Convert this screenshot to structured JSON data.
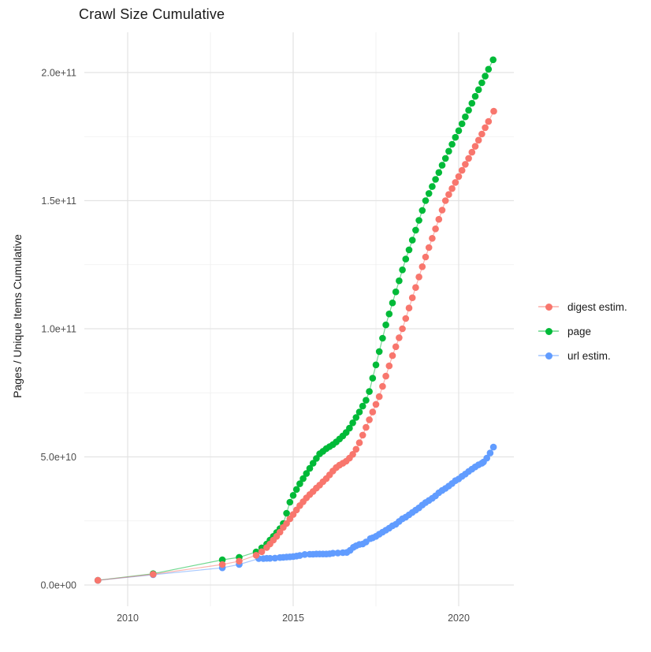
{
  "title": "Crawl Size Cumulative",
  "y_axis": {
    "label": "Pages / Unique Items Cumulative",
    "tick_labels": [
      "0.0e+00",
      "5.0e+10",
      "1.0e+11",
      "1.5e+11",
      "2.0e+11"
    ],
    "tick_values_e9": [
      0,
      50,
      100,
      150,
      200
    ],
    "minor_values_e9": [
      25,
      75,
      125,
      175
    ]
  },
  "x_axis": {
    "tick_labels": [
      "2010",
      "2015",
      "2020"
    ],
    "tick_values": [
      2010,
      2015,
      2020
    ],
    "minor_values": [
      2012.5,
      2017.5
    ]
  },
  "legend": {
    "position": "right",
    "items": [
      {
        "label": "digest estim.",
        "color": "#F8766D"
      },
      {
        "label": "page",
        "color": "#00BA38"
      },
      {
        "label": "url estim.",
        "color": "#619CFF"
      }
    ]
  },
  "chart_data": {
    "type": "scatter",
    "title": "Crawl Size Cumulative",
    "xlabel": "",
    "ylabel": "Pages / Unique Items Cumulative",
    "value_unit": "1e9 (billions of pages / unique items)",
    "xlim": [
      2008.5,
      2021.7
    ],
    "ylim_e9": [
      0,
      215
    ],
    "grid": true,
    "legend_position": "right",
    "z_order": [
      "page",
      "url estim.",
      "digest estim."
    ],
    "series": [
      {
        "name": "digest estim.",
        "color": "#F8766D",
        "points": [
          [
            2009.1,
            1.8
          ],
          [
            2010.77,
            4.2
          ],
          [
            2012.86,
            8.0
          ],
          [
            2013.37,
            9.3
          ],
          [
            2013.88,
            11.6
          ],
          [
            2014.05,
            13.0
          ],
          [
            2014.2,
            14.6
          ],
          [
            2014.3,
            16.0
          ],
          [
            2014.4,
            17.5
          ],
          [
            2014.5,
            19.0
          ],
          [
            2014.6,
            20.6
          ],
          [
            2014.7,
            22.5
          ],
          [
            2014.8,
            24.0
          ],
          [
            2014.9,
            25.8
          ],
          [
            2015.0,
            27.5
          ],
          [
            2015.1,
            29.3
          ],
          [
            2015.2,
            31.0
          ],
          [
            2015.3,
            32.5
          ],
          [
            2015.4,
            34.0
          ],
          [
            2015.5,
            35.3
          ],
          [
            2015.6,
            36.5
          ],
          [
            2015.7,
            37.8
          ],
          [
            2015.8,
            39.0
          ],
          [
            2015.9,
            40.3
          ],
          [
            2016.0,
            41.5
          ],
          [
            2016.1,
            43.0
          ],
          [
            2016.2,
            44.5
          ],
          [
            2016.3,
            45.8
          ],
          [
            2016.4,
            46.8
          ],
          [
            2016.5,
            47.5
          ],
          [
            2016.6,
            48.3
          ],
          [
            2016.7,
            49.5
          ],
          [
            2016.8,
            51.0
          ],
          [
            2016.9,
            53.0
          ],
          [
            2017.0,
            55.5
          ],
          [
            2017.1,
            58.5
          ],
          [
            2017.2,
            61.5
          ],
          [
            2017.3,
            64.5
          ],
          [
            2017.4,
            67.5
          ],
          [
            2017.5,
            70.5
          ],
          [
            2017.6,
            73.5
          ],
          [
            2017.7,
            77.5
          ],
          [
            2017.8,
            81.5
          ],
          [
            2017.9,
            85.5
          ],
          [
            2018.0,
            89.5
          ],
          [
            2018.1,
            93.0
          ],
          [
            2018.2,
            96.5
          ],
          [
            2018.3,
            100.0
          ],
          [
            2018.4,
            104.0
          ],
          [
            2018.5,
            108.1
          ],
          [
            2018.6,
            112.1
          ],
          [
            2018.7,
            116.1
          ],
          [
            2018.8,
            120.2
          ],
          [
            2018.9,
            124.2
          ],
          [
            2019.0,
            128.0
          ],
          [
            2019.1,
            131.7
          ],
          [
            2019.2,
            135.3
          ],
          [
            2019.3,
            139.0
          ],
          [
            2019.4,
            142.7
          ],
          [
            2019.5,
            146.3
          ],
          [
            2019.6,
            150.0
          ],
          [
            2019.7,
            152.4
          ],
          [
            2019.8,
            154.7
          ],
          [
            2019.9,
            157.1
          ],
          [
            2020.0,
            159.4
          ],
          [
            2020.1,
            161.8
          ],
          [
            2020.2,
            164.2
          ],
          [
            2020.3,
            166.5
          ],
          [
            2020.4,
            168.9
          ],
          [
            2020.5,
            171.2
          ],
          [
            2020.6,
            173.6
          ],
          [
            2020.7,
            176.0
          ],
          [
            2020.8,
            178.5
          ],
          [
            2020.9,
            180.9
          ],
          [
            2021.06,
            184.9
          ]
        ]
      },
      {
        "name": "page",
        "color": "#00BA38",
        "points": [
          [
            2009.1,
            1.8
          ],
          [
            2010.77,
            4.4
          ],
          [
            2012.86,
            9.8
          ],
          [
            2013.37,
            10.8
          ],
          [
            2013.88,
            12.9
          ],
          [
            2014.05,
            14.5
          ],
          [
            2014.2,
            16.0
          ],
          [
            2014.3,
            17.5
          ],
          [
            2014.4,
            19.0
          ],
          [
            2014.5,
            20.5
          ],
          [
            2014.6,
            22.0
          ],
          [
            2014.7,
            24.0
          ],
          [
            2014.8,
            28.0
          ],
          [
            2014.9,
            32.3
          ],
          [
            2015.0,
            35.0
          ],
          [
            2015.1,
            37.3
          ],
          [
            2015.2,
            39.5
          ],
          [
            2015.3,
            41.5
          ],
          [
            2015.4,
            43.5
          ],
          [
            2015.5,
            45.5
          ],
          [
            2015.6,
            47.5
          ],
          [
            2015.7,
            49.4
          ],
          [
            2015.8,
            51.2
          ],
          [
            2015.9,
            52.2
          ],
          [
            2016.0,
            53.2
          ],
          [
            2016.1,
            54.0
          ],
          [
            2016.2,
            54.8
          ],
          [
            2016.3,
            55.8
          ],
          [
            2016.4,
            57.0
          ],
          [
            2016.5,
            58.2
          ],
          [
            2016.6,
            59.5
          ],
          [
            2016.7,
            61.2
          ],
          [
            2016.8,
            63.3
          ],
          [
            2016.9,
            65.4
          ],
          [
            2017.0,
            67.5
          ],
          [
            2017.1,
            69.8
          ],
          [
            2017.2,
            72.1
          ],
          [
            2017.3,
            75.5
          ],
          [
            2017.4,
            80.7
          ],
          [
            2017.5,
            85.9
          ],
          [
            2017.6,
            91.1
          ],
          [
            2017.7,
            96.3
          ],
          [
            2017.8,
            101.5
          ],
          [
            2017.9,
            105.8
          ],
          [
            2018.0,
            110.1
          ],
          [
            2018.1,
            114.4
          ],
          [
            2018.2,
            118.7
          ],
          [
            2018.3,
            123.0
          ],
          [
            2018.4,
            127.2
          ],
          [
            2018.5,
            130.8
          ],
          [
            2018.6,
            134.6
          ],
          [
            2018.7,
            138.5
          ],
          [
            2018.8,
            142.3
          ],
          [
            2018.9,
            146.2
          ],
          [
            2019.0,
            150.0
          ],
          [
            2019.1,
            152.8
          ],
          [
            2019.2,
            155.5
          ],
          [
            2019.3,
            158.3
          ],
          [
            2019.4,
            161.0
          ],
          [
            2019.5,
            163.8
          ],
          [
            2019.6,
            166.5
          ],
          [
            2019.7,
            169.3
          ],
          [
            2019.8,
            172.0
          ],
          [
            2019.9,
            174.7
          ],
          [
            2020.0,
            177.3
          ],
          [
            2020.1,
            180.0
          ],
          [
            2020.2,
            182.7
          ],
          [
            2020.3,
            185.3
          ],
          [
            2020.4,
            188.0
          ],
          [
            2020.5,
            190.7
          ],
          [
            2020.6,
            193.3
          ],
          [
            2020.7,
            196.0
          ],
          [
            2020.8,
            198.6
          ],
          [
            2020.9,
            201.3
          ],
          [
            2021.04,
            205.0
          ]
        ]
      },
      {
        "name": "url estim.",
        "color": "#619CFF",
        "points": [
          [
            2009.1,
            1.8
          ],
          [
            2010.77,
            4.0
          ],
          [
            2012.86,
            6.7
          ],
          [
            2013.37,
            8.0
          ],
          [
            2013.96,
            10.3
          ],
          [
            2014.1,
            10.3
          ],
          [
            2014.2,
            10.4
          ],
          [
            2014.3,
            10.4
          ],
          [
            2014.45,
            10.5
          ],
          [
            2014.6,
            10.7
          ],
          [
            2014.7,
            10.8
          ],
          [
            2014.8,
            10.9
          ],
          [
            2014.9,
            11.0
          ],
          [
            2015.0,
            11.1
          ],
          [
            2015.1,
            11.3
          ],
          [
            2015.2,
            11.5
          ],
          [
            2015.35,
            11.9
          ],
          [
            2015.5,
            12.0
          ],
          [
            2015.6,
            12.0
          ],
          [
            2015.7,
            12.1
          ],
          [
            2015.8,
            12.1
          ],
          [
            2015.9,
            12.1
          ],
          [
            2016.0,
            12.1
          ],
          [
            2016.1,
            12.2
          ],
          [
            2016.2,
            12.4
          ],
          [
            2016.35,
            12.5
          ],
          [
            2016.5,
            12.6
          ],
          [
            2016.62,
            12.7
          ],
          [
            2016.72,
            13.5
          ],
          [
            2016.82,
            14.7
          ],
          [
            2016.9,
            15.3
          ],
          [
            2017.0,
            15.8
          ],
          [
            2017.1,
            16.0
          ],
          [
            2017.2,
            16.8
          ],
          [
            2017.33,
            18.1
          ],
          [
            2017.4,
            18.4
          ],
          [
            2017.5,
            19.0
          ],
          [
            2017.6,
            19.8
          ],
          [
            2017.7,
            20.6
          ],
          [
            2017.8,
            21.4
          ],
          [
            2017.9,
            22.2
          ],
          [
            2018.0,
            23.1
          ],
          [
            2018.1,
            23.7
          ],
          [
            2018.2,
            24.8
          ],
          [
            2018.3,
            25.8
          ],
          [
            2018.4,
            26.5
          ],
          [
            2018.5,
            27.4
          ],
          [
            2018.6,
            28.3
          ],
          [
            2018.7,
            29.2
          ],
          [
            2018.8,
            30.1
          ],
          [
            2018.9,
            31.2
          ],
          [
            2019.0,
            32.2
          ],
          [
            2019.1,
            33.0
          ],
          [
            2019.2,
            33.8
          ],
          [
            2019.3,
            34.8
          ],
          [
            2019.4,
            36.0
          ],
          [
            2019.5,
            36.9
          ],
          [
            2019.6,
            37.7
          ],
          [
            2019.7,
            38.6
          ],
          [
            2019.8,
            39.6
          ],
          [
            2019.9,
            40.7
          ],
          [
            2020.0,
            41.4
          ],
          [
            2020.1,
            42.4
          ],
          [
            2020.2,
            43.3
          ],
          [
            2020.3,
            44.3
          ],
          [
            2020.4,
            45.2
          ],
          [
            2020.5,
            46.1
          ],
          [
            2020.6,
            46.9
          ],
          [
            2020.7,
            47.5
          ],
          [
            2020.75,
            48.0
          ],
          [
            2020.85,
            49.5
          ],
          [
            2020.95,
            51.5
          ],
          [
            2021.05,
            53.8
          ]
        ]
      }
    ]
  }
}
